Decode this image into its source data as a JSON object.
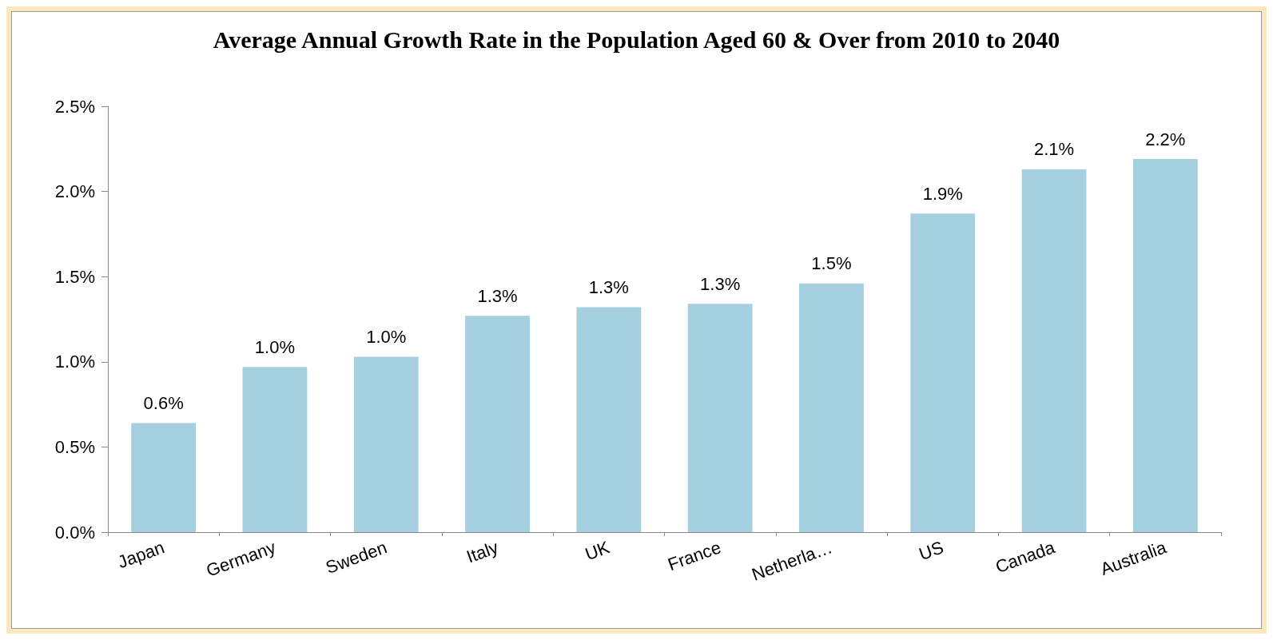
{
  "chart_data": {
    "type": "bar",
    "title": "Average Annual Growth Rate in the Population Aged 60 & Over from 2010 to 2040",
    "categories": [
      "Japan",
      "Germany",
      "Sweden",
      "Italy",
      "UK",
      "France",
      "Netherla…",
      "US",
      "Canada",
      "Australia"
    ],
    "values": [
      0.64,
      0.97,
      1.03,
      1.27,
      1.32,
      1.34,
      1.46,
      1.87,
      2.13,
      2.19
    ],
    "value_labels": [
      "0.6%",
      "1.0%",
      "1.0%",
      "1.3%",
      "1.3%",
      "1.3%",
      "1.5%",
      "1.9%",
      "2.1%",
      "2.2%"
    ],
    "color": "#a6cfdf",
    "ylim": [
      0,
      2.5
    ],
    "yticks": [
      {
        "value": 0,
        "label": "0.0%"
      },
      {
        "value": 0.5,
        "label": "0.5%"
      },
      {
        "value": 1,
        "label": "1.0%"
      },
      {
        "value": 1.5,
        "label": "1.5%"
      },
      {
        "value": 2,
        "label": "2.0%"
      },
      {
        "value": 2.5,
        "label": "2.5%"
      }
    ],
    "grid": false
  }
}
